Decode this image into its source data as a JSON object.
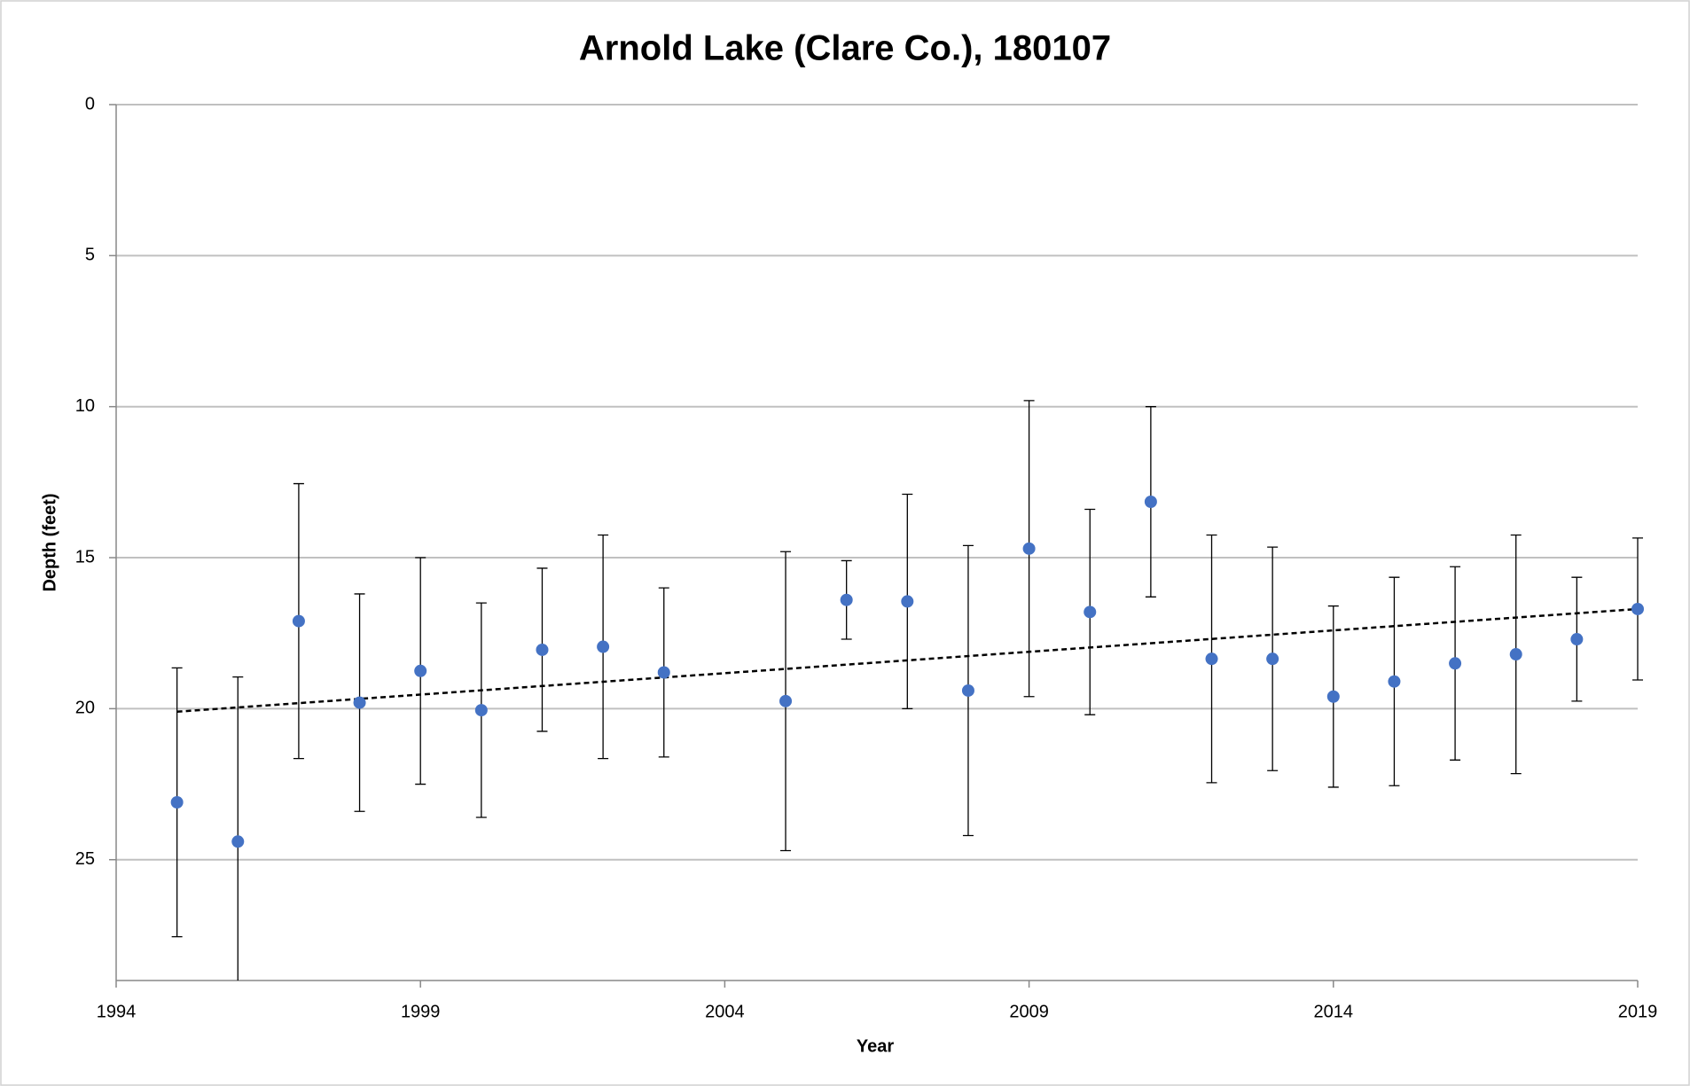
{
  "chart_data": {
    "type": "scatter",
    "title": "Arnold Lake (Clare Co.), 180107",
    "x_label": "Year",
    "y_label": "Depth (feet)",
    "x": [
      1995,
      1996,
      1997,
      1998,
      1999,
      2000,
      2001,
      2002,
      2003,
      2005,
      2006,
      2007,
      2008,
      2009,
      2010,
      2011,
      2012,
      2013,
      2014,
      2015,
      2016,
      2017,
      2018,
      2019
    ],
    "values": [
      23.1,
      24.4,
      17.1,
      19.8,
      18.75,
      20.05,
      18.05,
      17.95,
      18.8,
      19.75,
      16.4,
      16.45,
      19.4,
      14.7,
      16.8,
      13.15,
      18.35,
      18.35,
      19.6,
      19.1,
      18.5,
      18.2,
      17.7,
      16.7
    ],
    "errors": [
      4.45,
      5.45,
      4.55,
      3.6,
      3.75,
      3.55,
      2.7,
      3.7,
      2.8,
      4.95,
      1.3,
      3.55,
      4.8,
      4.9,
      3.4,
      3.15,
      4.1,
      3.7,
      3.0,
      3.45,
      3.2,
      3.95,
      2.05,
      2.35
    ],
    "color": "#4472c4",
    "trendline": {
      "x": [
        1995,
        2019
      ],
      "values": [
        20.1,
        16.7
      ]
    },
    "xlim": [
      1994,
      2019
    ],
    "xticks": [
      1994,
      1999,
      2004,
      2009,
      2014,
      2019
    ],
    "ylim": [
      0,
      29
    ],
    "yticks": [
      0,
      5,
      10,
      15,
      20,
      25
    ],
    "y_inverted": true,
    "grid": true
  }
}
